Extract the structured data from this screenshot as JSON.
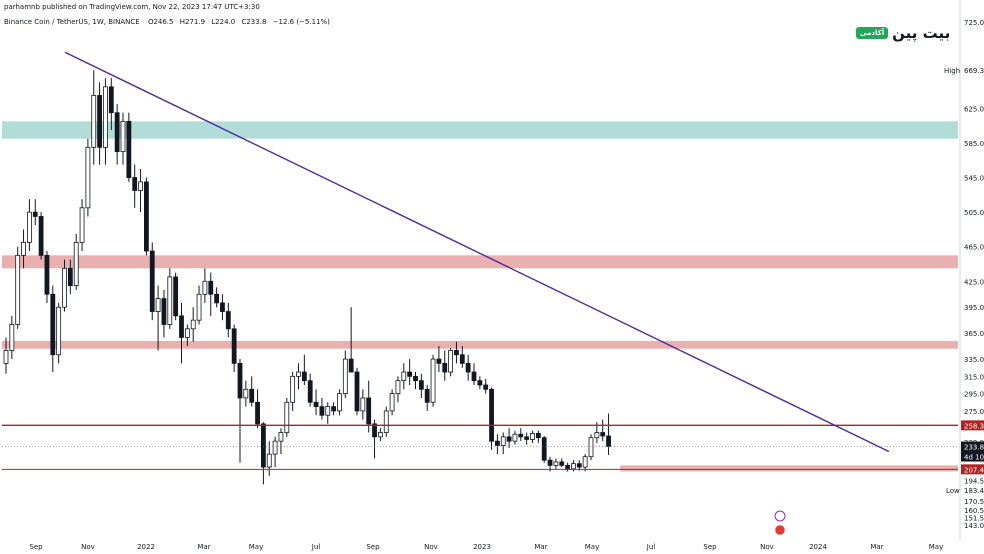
{
  "header": {
    "published_line": "parhamnb published on TradingView.com, Nov 22, 2023 17:47 UTC+3:30"
  },
  "legend": {
    "symbol": "Binance Coin / TetherUS, 1W, BINANCE",
    "open": "O246.5",
    "high": "H271.9",
    "low": "L224.0",
    "close": "C233.8",
    "change": "−12.6 (−5.11%)"
  },
  "logo": {
    "word": "بیت پین",
    "badge": "آکادمی"
  },
  "colors": {
    "up": "#131722",
    "down": "#131722",
    "up_fill": "#ffffff",
    "trendline": "#4a2a9e",
    "zone_red": "#e8a6a6",
    "zone_teal": "#a8d8d3",
    "line_red": "#b22222",
    "axis_text": "#131722",
    "price_tag": "#b22222"
  },
  "chart_data": {
    "type": "candlestick",
    "timeframe": "1W",
    "y_axis_ticks": [
      725.0,
      669.3,
      625.0,
      585.0,
      545.0,
      505.0,
      465.0,
      425.0,
      395.0,
      365.0,
      335.0,
      315.0,
      295.0,
      275.0,
      258.3,
      239.0,
      233.8,
      222.0,
      207.4,
      194.5,
      183.4,
      170.5,
      160.5,
      151.5,
      143.0
    ],
    "y_tick_labels": [
      "725.0",
      "669.3",
      "625.0",
      "585.0",
      "545.0",
      "505.0",
      "465.0",
      "425.0",
      "395.0",
      "365.0",
      "335.0",
      "315.0",
      "295.0",
      "275.0",
      "258.3",
      "239.0",
      "233.8",
      "222.0",
      "207.4",
      "194.5",
      "183.4",
      "170.5",
      "160.5",
      "151.5",
      "143.0"
    ],
    "y_markers": {
      "high_label": "High",
      "high_value": "669.3",
      "low_label": "Low",
      "low_value": "183.4",
      "resistance_tag": "258.3",
      "current_price_tag": "233.8",
      "countdown_tag": "4d 10",
      "support_tag": "207.4"
    },
    "x_tick_labels": [
      "Sep",
      "Nov",
      "2022",
      "Mar",
      "May",
      "Jul",
      "Sep",
      "Nov",
      "2023",
      "Mar",
      "May",
      "Jul",
      "Sep",
      "Nov",
      "2024",
      "Mar",
      "May"
    ],
    "candles": [
      [
        330,
        360,
        318,
        345
      ],
      [
        345,
        385,
        335,
        375
      ],
      [
        375,
        465,
        370,
        455
      ],
      [
        455,
        485,
        440,
        470
      ],
      [
        470,
        520,
        460,
        505
      ],
      [
        505,
        520,
        490,
        500
      ],
      [
        500,
        505,
        450,
        455
      ],
      [
        455,
        460,
        400,
        410
      ],
      [
        410,
        420,
        320,
        340
      ],
      [
        340,
        400,
        330,
        395
      ],
      [
        395,
        450,
        390,
        440
      ],
      [
        440,
        450,
        410,
        420
      ],
      [
        420,
        480,
        415,
        470
      ],
      [
        470,
        520,
        460,
        510
      ],
      [
        510,
        590,
        500,
        580
      ],
      [
        580,
        669,
        560,
        640
      ],
      [
        640,
        655,
        560,
        580
      ],
      [
        580,
        660,
        560,
        650
      ],
      [
        650,
        660,
        600,
        620
      ],
      [
        620,
        630,
        560,
        575
      ],
      [
        575,
        620,
        560,
        610
      ],
      [
        610,
        620,
        540,
        545
      ],
      [
        545,
        560,
        510,
        530
      ],
      [
        530,
        555,
        505,
        540
      ],
      [
        540,
        545,
        455,
        460
      ],
      [
        460,
        470,
        380,
        390
      ],
      [
        390,
        420,
        345,
        405
      ],
      [
        405,
        415,
        360,
        375
      ],
      [
        375,
        440,
        370,
        430
      ],
      [
        430,
        435,
        380,
        385
      ],
      [
        385,
        400,
        330,
        360
      ],
      [
        360,
        375,
        350,
        370
      ],
      [
        370,
        395,
        355,
        380
      ],
      [
        380,
        420,
        375,
        410
      ],
      [
        410,
        440,
        400,
        425
      ],
      [
        425,
        435,
        385,
        410
      ],
      [
        410,
        418,
        395,
        400
      ],
      [
        400,
        410,
        380,
        390
      ],
      [
        390,
        400,
        360,
        370
      ],
      [
        370,
        375,
        320,
        330
      ],
      [
        330,
        335,
        215,
        290
      ],
      [
        290,
        310,
        280,
        300
      ],
      [
        300,
        315,
        280,
        285
      ],
      [
        285,
        300,
        255,
        260
      ],
      [
        260,
        262,
        190,
        210
      ],
      [
        210,
        240,
        200,
        225
      ],
      [
        225,
        245,
        210,
        240
      ],
      [
        240,
        255,
        225,
        250
      ],
      [
        250,
        290,
        245,
        285
      ],
      [
        285,
        320,
        275,
        315
      ],
      [
        315,
        330,
        300,
        320
      ],
      [
        320,
        340,
        305,
        310
      ],
      [
        310,
        318,
        280,
        285
      ],
      [
        285,
        300,
        270,
        280
      ],
      [
        280,
        290,
        265,
        270
      ],
      [
        270,
        285,
        260,
        280
      ],
      [
        280,
        285,
        270,
        275
      ],
      [
        275,
        300,
        270,
        295
      ],
      [
        295,
        345,
        290,
        335
      ],
      [
        335,
        395,
        320,
        320
      ],
      [
        320,
        325,
        270,
        275
      ],
      [
        275,
        300,
        265,
        290
      ],
      [
        290,
        310,
        250,
        260
      ],
      [
        260,
        265,
        220,
        245
      ],
      [
        245,
        255,
        240,
        250
      ],
      [
        250,
        280,
        245,
        275
      ],
      [
        275,
        300,
        270,
        295
      ],
      [
        295,
        315,
        285,
        310
      ],
      [
        310,
        330,
        300,
        320
      ],
      [
        320,
        335,
        305,
        315
      ],
      [
        315,
        320,
        300,
        310
      ],
      [
        310,
        318,
        290,
        300
      ],
      [
        300,
        305,
        275,
        285
      ],
      [
        285,
        340,
        280,
        335
      ],
      [
        335,
        350,
        320,
        330
      ],
      [
        330,
        345,
        310,
        320
      ],
      [
        320,
        348,
        315,
        345
      ],
      [
        345,
        355,
        330,
        340
      ],
      [
        340,
        350,
        325,
        330
      ],
      [
        330,
        340,
        310,
        320
      ],
      [
        320,
        330,
        305,
        310
      ],
      [
        310,
        315,
        300,
        305
      ],
      [
        305,
        312,
        295,
        300
      ],
      [
        300,
        302,
        230,
        240
      ],
      [
        240,
        248,
        225,
        235
      ],
      [
        235,
        250,
        225,
        245
      ],
      [
        245,
        255,
        232,
        240
      ],
      [
        240,
        252,
        236,
        248
      ],
      [
        248,
        255,
        240,
        245
      ],
      [
        245,
        250,
        236,
        242
      ],
      [
        242,
        252,
        238,
        249
      ],
      [
        249,
        252,
        238,
        244
      ],
      [
        244,
        246,
        215,
        218
      ],
      [
        218,
        222,
        205,
        212
      ],
      [
        212,
        220,
        208,
        216
      ],
      [
        216,
        220,
        210,
        212
      ],
      [
        212,
        215,
        205,
        208
      ],
      [
        208,
        218,
        205,
        214
      ],
      [
        214,
        218,
        206,
        210
      ],
      [
        210,
        225,
        205,
        222
      ],
      [
        222,
        248,
        218,
        244
      ],
      [
        244,
        262,
        238,
        250
      ],
      [
        250,
        265,
        240,
        246
      ],
      [
        246,
        272,
        224,
        234
      ]
    ],
    "trendline": {
      "from_index": 7,
      "from_price": 690,
      "to_index": 121,
      "to_price": 228
    },
    "horizontal_lines": [
      258.3,
      207.4
    ],
    "zones": [
      {
        "low": 590,
        "high": 610,
        "color": "teal"
      },
      {
        "low": 440,
        "high": 455,
        "color": "red"
      },
      {
        "low": 347,
        "high": 356,
        "color": "red"
      },
      {
        "low": 205,
        "high": 212,
        "color": "red",
        "from_index": 105
      }
    ]
  }
}
